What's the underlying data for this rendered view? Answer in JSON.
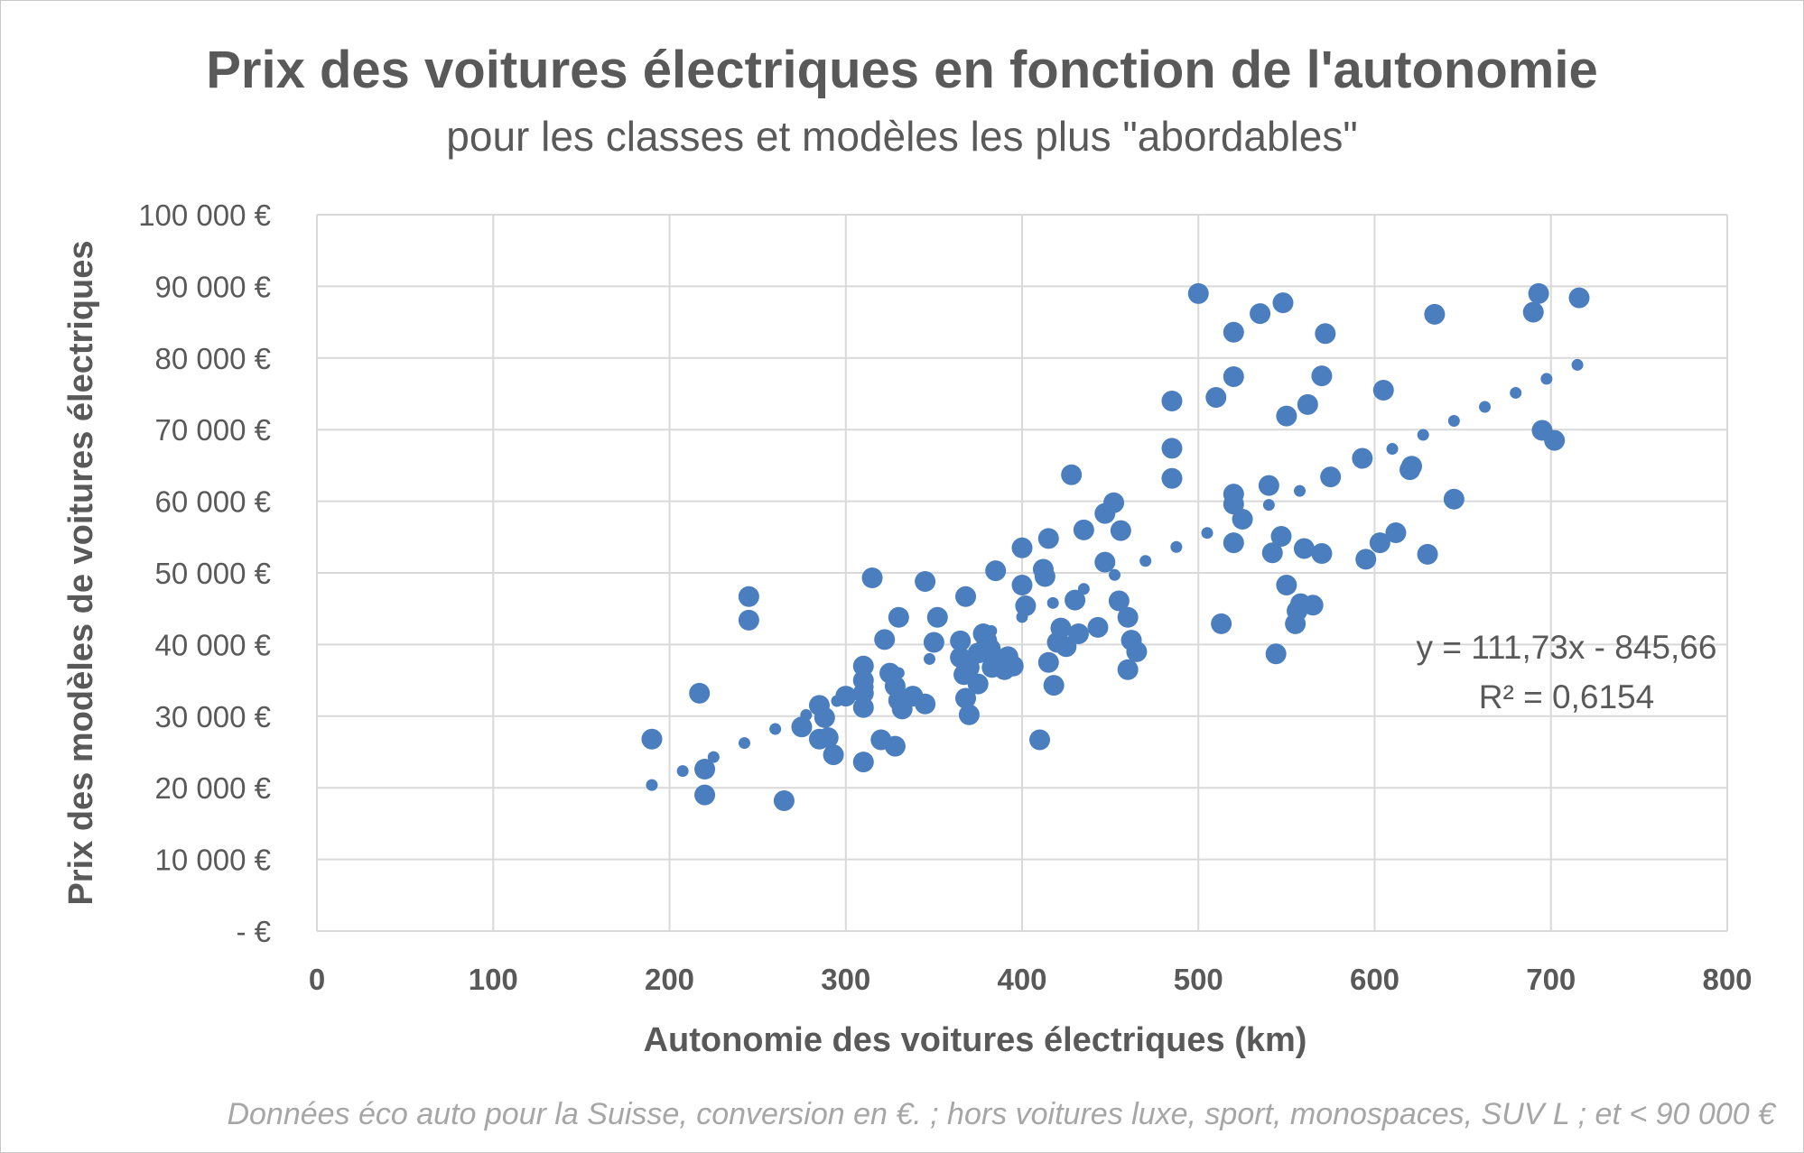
{
  "chart_data": {
    "type": "scatter",
    "title": "Prix des voitures électriques en fonction de l'autonomie",
    "subtitle": "pour les classes et modèles les plus \"abordables\"",
    "xlabel": "Autonomie des voitures électriques (km)",
    "ylabel": "Prix des modèles de voitures électriques",
    "xlim": [
      0,
      800
    ],
    "ylim": [
      0,
      100000
    ],
    "x_ticks": [
      "0",
      "100",
      "200",
      "300",
      "400",
      "500",
      "600",
      "700",
      "800"
    ],
    "y_ticks": [
      "-   €",
      "10 000 €",
      "20 000 €",
      "30 000 €",
      "40 000 €",
      "50 000 €",
      "60 000 €",
      "70 000 €",
      "80 000 €",
      "90 000 €",
      "100 000 €"
    ],
    "grid": true,
    "legend": "none",
    "marker_color": "#4a7ebf",
    "trendline": {
      "type": "linear",
      "slope": 111.73,
      "intercept": -845.66,
      "x_range": [
        190,
        715
      ],
      "style": "dotted",
      "equation_label": "y = 111,73x - 845,66",
      "r2_label": "R² = 0,6154"
    },
    "points": [
      [
        190,
        26800
      ],
      [
        217,
        33200
      ],
      [
        220,
        22600
      ],
      [
        220,
        19000
      ],
      [
        245,
        46700
      ],
      [
        245,
        43400
      ],
      [
        265,
        18200
      ],
      [
        275,
        28500
      ],
      [
        285,
        31500
      ],
      [
        285,
        26800
      ],
      [
        290,
        27000
      ],
      [
        288,
        29800
      ],
      [
        293,
        24600
      ],
      [
        300,
        32800
      ],
      [
        310,
        37000
      ],
      [
        310,
        35000
      ],
      [
        310,
        33200
      ],
      [
        310,
        31200
      ],
      [
        310,
        23600
      ],
      [
        315,
        49300
      ],
      [
        320,
        26700
      ],
      [
        322,
        40700
      ],
      [
        325,
        36000
      ],
      [
        328,
        25800
      ],
      [
        328,
        34200
      ],
      [
        330,
        43800
      ],
      [
        330,
        32200
      ],
      [
        332,
        31000
      ],
      [
        338,
        32800
      ],
      [
        345,
        31700
      ],
      [
        345,
        48800
      ],
      [
        350,
        40300
      ],
      [
        352,
        43800
      ],
      [
        365,
        40500
      ],
      [
        365,
        38200
      ],
      [
        367,
        35800
      ],
      [
        368,
        46700
      ],
      [
        368,
        32500
      ],
      [
        370,
        36800
      ],
      [
        370,
        30200
      ],
      [
        375,
        34500
      ],
      [
        375,
        38800
      ],
      [
        378,
        41500
      ],
      [
        380,
        40500
      ],
      [
        382,
        39400
      ],
      [
        383,
        36800
      ],
      [
        385,
        50300
      ],
      [
        385,
        37000
      ],
      [
        390,
        36500
      ],
      [
        392,
        38300
      ],
      [
        395,
        37000
      ],
      [
        400,
        53500
      ],
      [
        400,
        48300
      ],
      [
        402,
        45400
      ],
      [
        410,
        26700
      ],
      [
        412,
        50500
      ],
      [
        413,
        49500
      ],
      [
        415,
        54800
      ],
      [
        415,
        37500
      ],
      [
        418,
        34300
      ],
      [
        420,
        40300
      ],
      [
        422,
        42300
      ],
      [
        425,
        39700
      ],
      [
        428,
        63700
      ],
      [
        430,
        46200
      ],
      [
        432,
        41500
      ],
      [
        435,
        56000
      ],
      [
        443,
        42400
      ],
      [
        447,
        51500
      ],
      [
        447,
        58300
      ],
      [
        452,
        59800
      ],
      [
        455,
        46100
      ],
      [
        456,
        55900
      ],
      [
        460,
        43800
      ],
      [
        460,
        36500
      ],
      [
        462,
        40600
      ],
      [
        465,
        39000
      ],
      [
        485,
        74000
      ],
      [
        485,
        67400
      ],
      [
        485,
        63200
      ],
      [
        500,
        89000
      ],
      [
        510,
        74500
      ],
      [
        513,
        42900
      ],
      [
        520,
        83600
      ],
      [
        520,
        77400
      ],
      [
        520,
        61000
      ],
      [
        520,
        59600
      ],
      [
        520,
        54200
      ],
      [
        525,
        57500
      ],
      [
        535,
        86200
      ],
      [
        540,
        62200
      ],
      [
        542,
        52800
      ],
      [
        544,
        38700
      ],
      [
        547,
        55100
      ],
      [
        548,
        87700
      ],
      [
        550,
        71900
      ],
      [
        550,
        48300
      ],
      [
        555,
        42900
      ],
      [
        556,
        44700
      ],
      [
        558,
        45700
      ],
      [
        560,
        53400
      ],
      [
        562,
        73500
      ],
      [
        565,
        45500
      ],
      [
        570,
        77500
      ],
      [
        570,
        52700
      ],
      [
        572,
        83400
      ],
      [
        575,
        63400
      ],
      [
        593,
        66000
      ],
      [
        595,
        51900
      ],
      [
        603,
        54200
      ],
      [
        605,
        75500
      ],
      [
        612,
        55600
      ],
      [
        620,
        64400
      ],
      [
        621,
        64900
      ],
      [
        630,
        52600
      ],
      [
        634,
        86100
      ],
      [
        645,
        60300
      ],
      [
        690,
        86400
      ],
      [
        693,
        89000
      ],
      [
        695,
        69900
      ],
      [
        702,
        68500
      ],
      [
        716,
        88400
      ]
    ]
  },
  "footnote": "Données éco auto pour la Suisse, conversion en €. ; hors voitures luxe, sport, monospaces, SUV L ; et < 90 000 €"
}
